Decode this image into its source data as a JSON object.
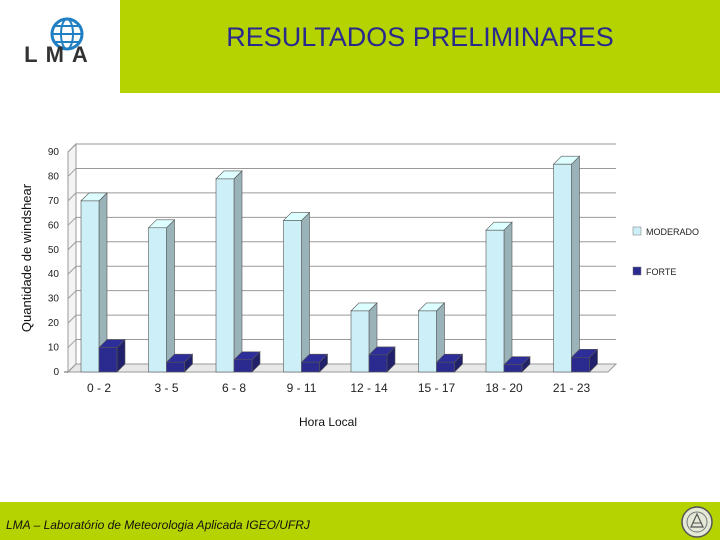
{
  "header": {
    "logo_text": "LMA",
    "title": "RESULTADOS PRELIMINARES"
  },
  "colors": {
    "brand_green": "#b5d300",
    "title_blue": "#2a2a8c",
    "moderado": "#cdeff7",
    "forte": "#2b2b8f"
  },
  "chart_data": {
    "type": "bar",
    "title": "",
    "xlabel": "Hora Local",
    "ylabel": "Quantidade de windshear",
    "categories": [
      "0 - 2",
      "3 - 5",
      "6 - 8",
      "9 - 11",
      "12 - 14",
      "15 - 17",
      "18 - 20",
      "21 - 23"
    ],
    "series": [
      {
        "name": "MODERADO",
        "values": [
          70,
          59,
          79,
          62,
          25,
          25,
          58,
          85
        ]
      },
      {
        "name": "FORTE",
        "values": [
          10,
          4,
          5,
          4,
          7,
          4,
          3,
          6
        ]
      }
    ],
    "ylim": [
      0,
      90
    ],
    "yticks": [
      "0",
      "10",
      "20",
      "30",
      "40",
      "50",
      "60",
      "70",
      "80",
      "90"
    ],
    "grid": true,
    "legend_position": "right",
    "style": "3d"
  },
  "footer": {
    "text": "LMA – Laboratório de Meteorologia Aplicada IGEO/UFRJ",
    "seal_icon": "university-seal-icon"
  }
}
